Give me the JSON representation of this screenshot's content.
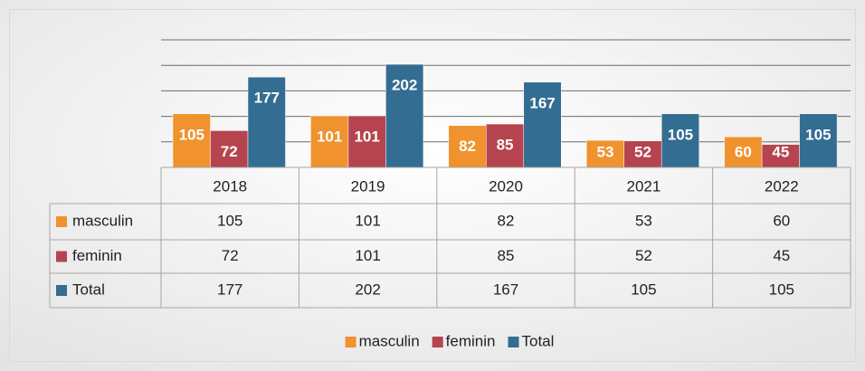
{
  "chart_data": {
    "type": "bar",
    "categories": [
      "2018",
      "2019",
      "2020",
      "2021",
      "2022"
    ],
    "series": [
      {
        "name": "masculin",
        "color": "#f0922e",
        "values": [
          105,
          101,
          82,
          53,
          60
        ]
      },
      {
        "name": "feminin",
        "color": "#b5444f",
        "values": [
          72,
          101,
          85,
          52,
          45
        ]
      },
      {
        "name": "Total",
        "color": "#336d91",
        "values": [
          177,
          202,
          167,
          105,
          105
        ]
      }
    ],
    "ylim": [
      0,
      250
    ],
    "yticks": [
      0,
      50,
      100,
      150,
      200,
      250
    ],
    "grid": true,
    "data_table": true,
    "legend": "bottom"
  }
}
